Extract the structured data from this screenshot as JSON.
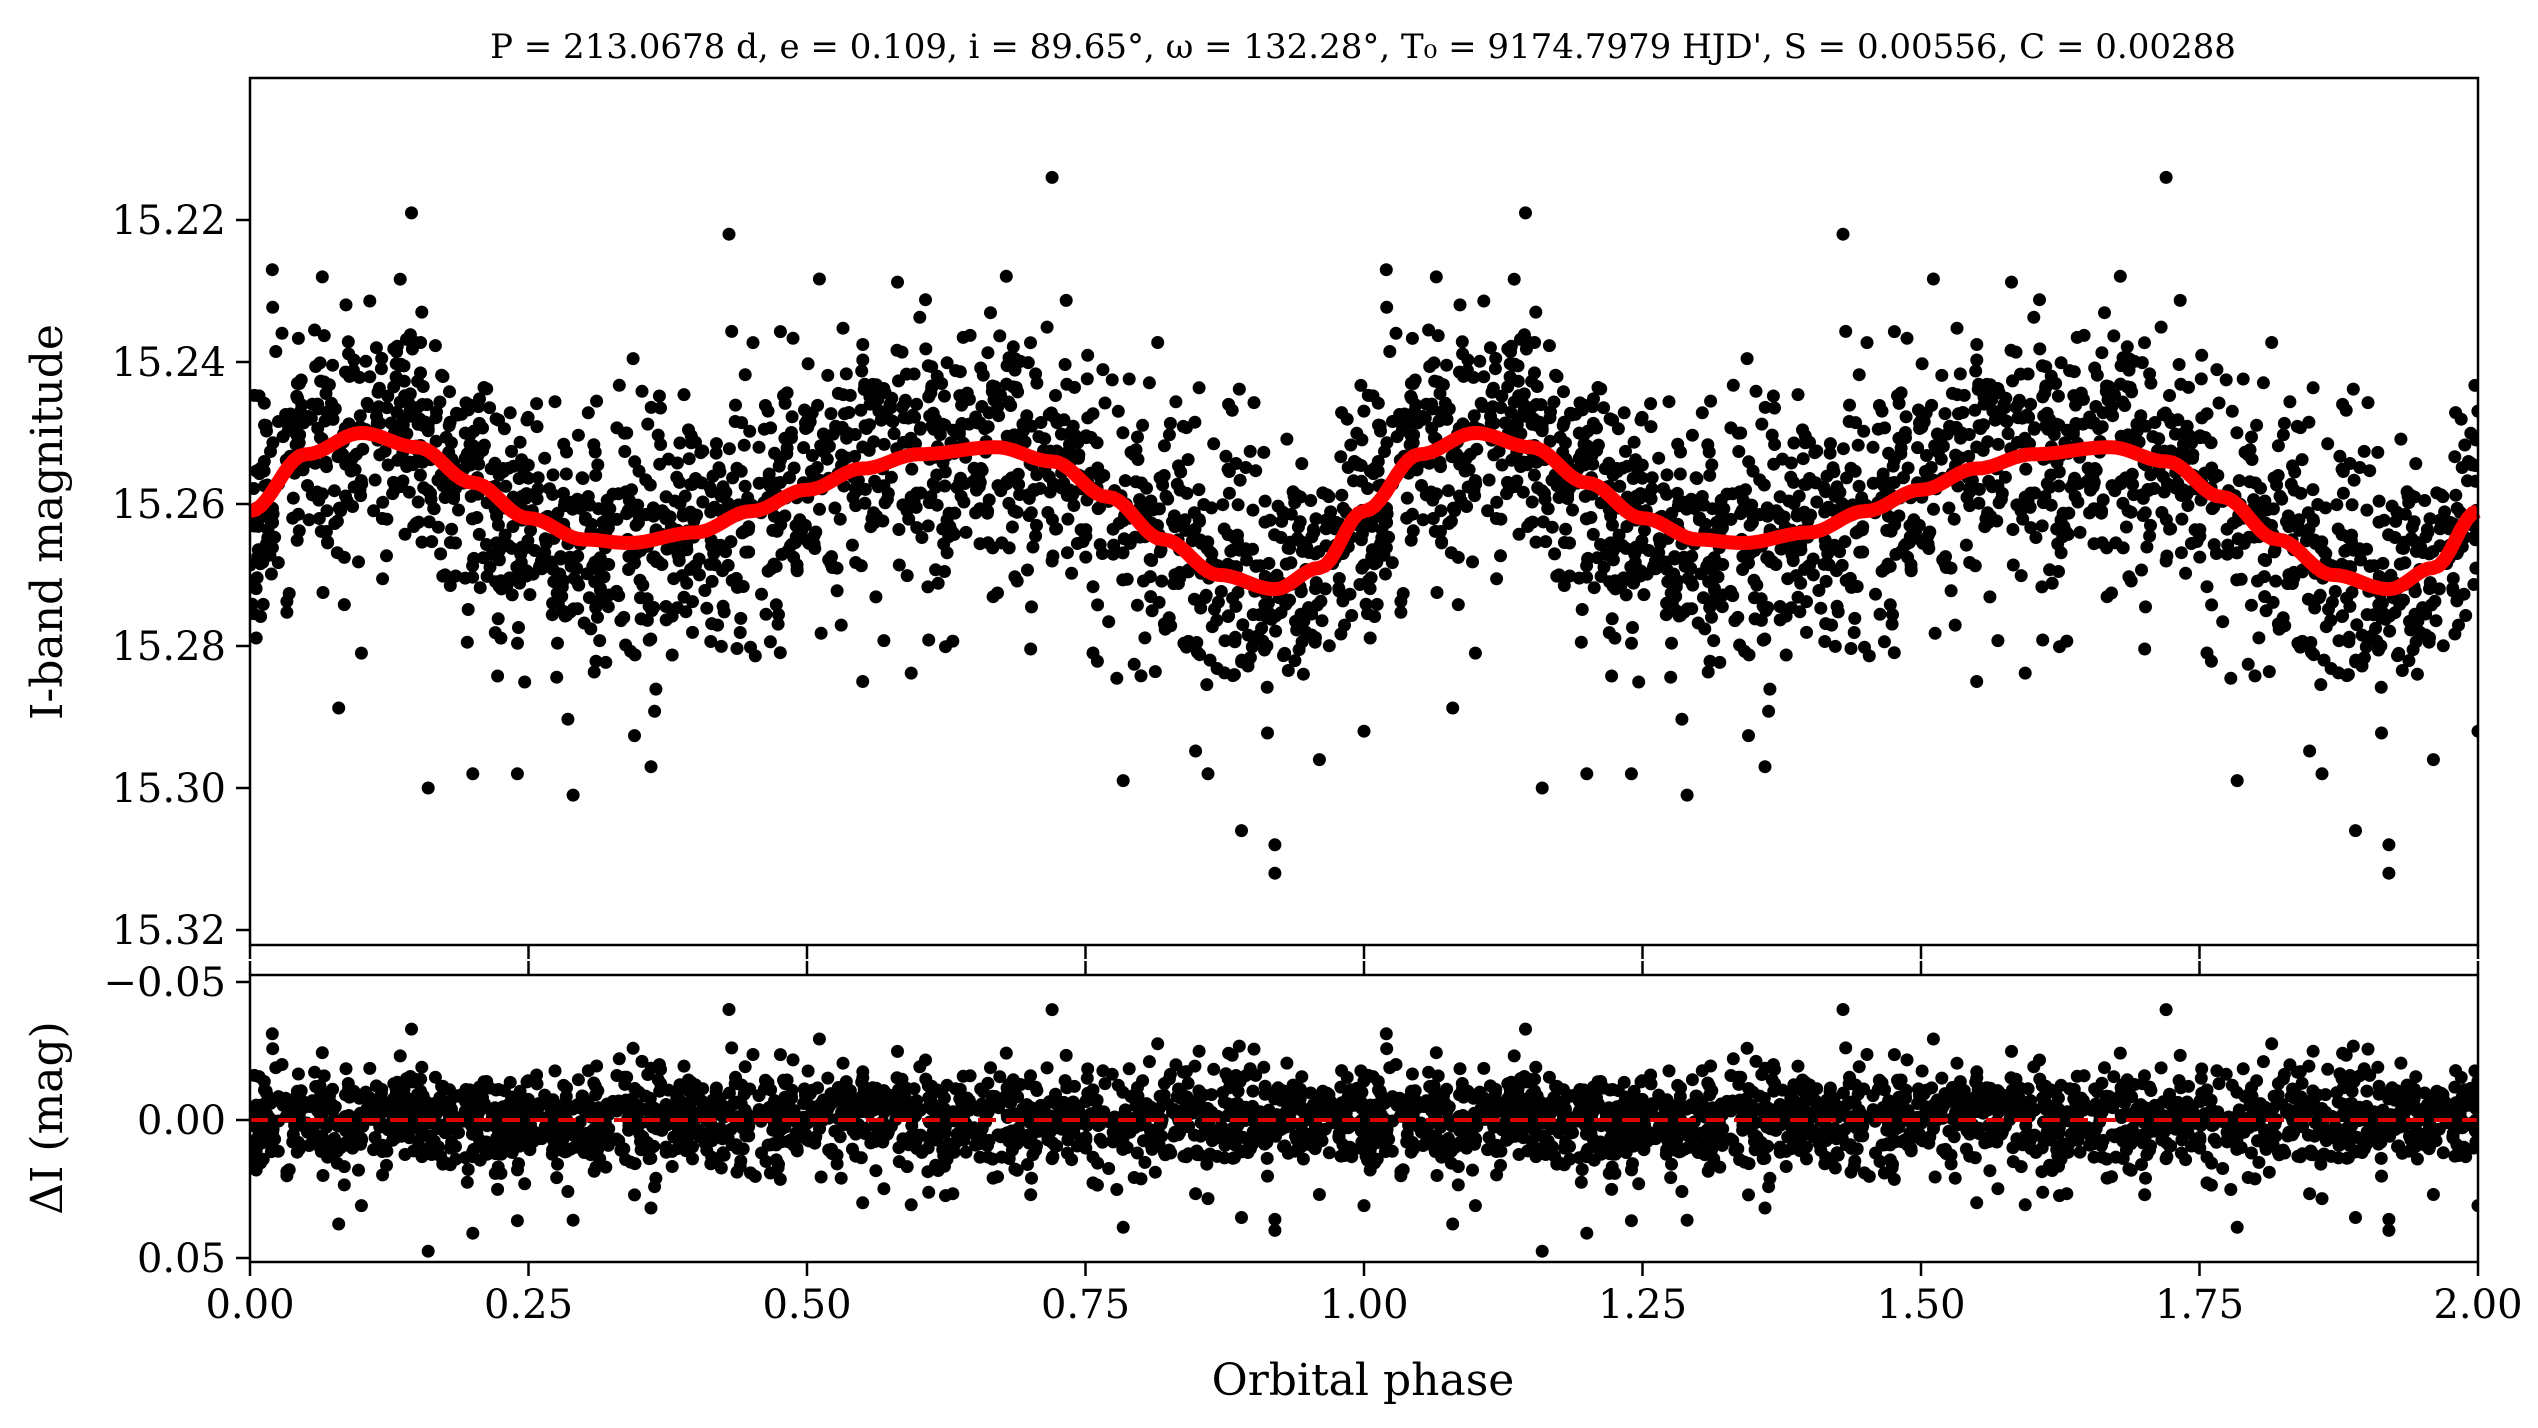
{
  "title": "P = 213.0678 d, e = 0.109, i = 89.65°, ω = 132.28°, T₀ = 9174.7979 HJD', S = 0.00556, C = 0.00288",
  "colors": {
    "points": "#000000",
    "model": "#ff0000",
    "zero_line": "#dd0000",
    "background": "#ffffff"
  },
  "chart_data": [
    {
      "type": "scatter",
      "panel": "top",
      "xlabel": "",
      "ylabel": "I-band magnitude",
      "xlim": [
        0.0,
        2.0
      ],
      "ylim": [
        15.32,
        15.2
      ],
      "y_inverted": true,
      "xticks": [
        0.0,
        0.25,
        0.5,
        0.75,
        1.0,
        1.25,
        1.5,
        1.75,
        2.0
      ],
      "yticks": [
        15.22,
        15.24,
        15.26,
        15.28,
        15.3,
        15.32
      ],
      "ytick_labels": [
        "15.22",
        "15.24",
        "15.26",
        "15.28",
        "15.30",
        "15.32"
      ],
      "grid": false,
      "series": [
        {
          "kind": "points",
          "points_per_phase_unit": 2600,
          "scatter_mag": 0.009,
          "model_curve_x": [
            0.0,
            0.05,
            0.1,
            0.15,
            0.2,
            0.25,
            0.3,
            0.34,
            0.4,
            0.45,
            0.5,
            0.55,
            0.6,
            0.67,
            0.72,
            0.77,
            0.82,
            0.87,
            0.92,
            0.96,
            1.0
          ],
          "model_curve_y": [
            15.261,
            15.253,
            15.25,
            15.252,
            15.257,
            15.262,
            15.265,
            15.2655,
            15.264,
            15.261,
            15.258,
            15.255,
            15.253,
            15.252,
            15.254,
            15.259,
            15.265,
            15.27,
            15.272,
            15.269,
            15.261
          ],
          "outliers": [
            [
              0.02,
              15.227
            ],
            [
              0.1,
              15.281
            ],
            [
              0.145,
              15.219
            ],
            [
              0.16,
              15.3
            ],
            [
              0.2,
              15.298
            ],
            [
              0.24,
              15.298
            ],
            [
              0.29,
              15.301
            ],
            [
              0.36,
              15.297
            ],
            [
              0.43,
              15.222
            ],
            [
              0.55,
              15.285
            ],
            [
              0.72,
              15.214
            ],
            [
              0.86,
              15.298
            ],
            [
              0.89,
              15.306
            ],
            [
              0.92,
              15.308
            ],
            [
              0.92,
              15.312
            ],
            [
              0.96,
              15.296
            ],
            [
              1.0,
              15.292
            ]
          ]
        },
        {
          "kind": "line",
          "name": "",
          "x": [
            0.0,
            0.05,
            0.1,
            0.15,
            0.2,
            0.25,
            0.3,
            0.34,
            0.4,
            0.45,
            0.5,
            0.55,
            0.6,
            0.67,
            0.72,
            0.77,
            0.82,
            0.87,
            0.92,
            0.96,
            1.0,
            1.05,
            1.1,
            1.15,
            1.2,
            1.25,
            1.3,
            1.34,
            1.4,
            1.45,
            1.5,
            1.55,
            1.6,
            1.67,
            1.72,
            1.77,
            1.82,
            1.87,
            1.92,
            1.96,
            2.0
          ],
          "y": [
            15.261,
            15.253,
            15.25,
            15.252,
            15.257,
            15.262,
            15.265,
            15.2655,
            15.264,
            15.261,
            15.258,
            15.255,
            15.253,
            15.252,
            15.254,
            15.259,
            15.265,
            15.27,
            15.272,
            15.269,
            15.261,
            15.253,
            15.25,
            15.252,
            15.257,
            15.262,
            15.265,
            15.2655,
            15.264,
            15.261,
            15.258,
            15.255,
            15.253,
            15.252,
            15.254,
            15.259,
            15.265,
            15.27,
            15.272,
            15.269,
            15.261
          ]
        }
      ]
    },
    {
      "type": "scatter",
      "panel": "bottom",
      "xlabel": "Orbital phase",
      "ylabel": "ΔI (mag)",
      "xlim": [
        0.0,
        2.0
      ],
      "ylim": [
        0.05,
        -0.05
      ],
      "y_inverted": true,
      "xticks": [
        0.0,
        0.25,
        0.5,
        0.75,
        1.0,
        1.25,
        1.5,
        1.75,
        2.0
      ],
      "xtick_labels": [
        "0.00",
        "0.25",
        "0.50",
        "0.75",
        "1.00",
        "1.25",
        "1.50",
        "1.75",
        "2.00"
      ],
      "yticks": [
        -0.05,
        0.0,
        0.05
      ],
      "ytick_labels": [
        "−0.05",
        "0.00",
        "0.05"
      ],
      "grid": false,
      "series": [
        {
          "kind": "points",
          "residual_scatter": 0.009
        },
        {
          "kind": "dashed_line",
          "y": 0.0
        }
      ]
    }
  ]
}
